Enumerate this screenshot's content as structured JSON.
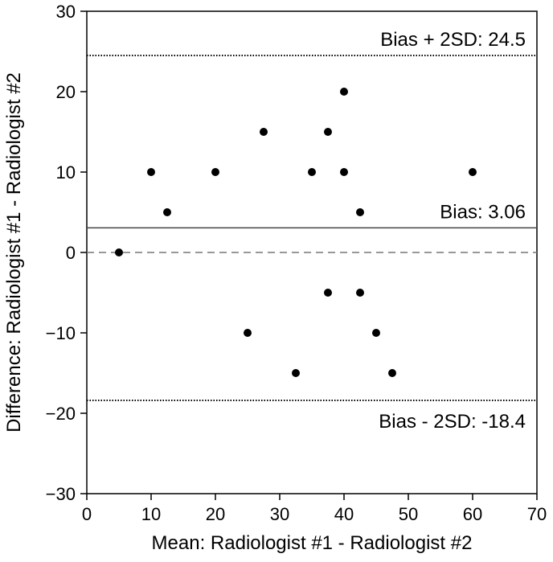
{
  "chart_data": {
    "type": "scatter",
    "title": "",
    "xlabel": "Mean: Radiologist #1 - Radiologist #2",
    "ylabel": "Difference: Radiologist #1 - Radiologist #2",
    "xlim": [
      0,
      70
    ],
    "ylim": [
      -30,
      30
    ],
    "x_ticks": [
      0,
      10,
      20,
      30,
      40,
      50,
      60,
      70
    ],
    "y_ticks": [
      -30,
      -20,
      -10,
      0,
      10,
      20,
      30
    ],
    "x_tick_labels": [
      "0",
      "10",
      "20",
      "30",
      "40",
      "50",
      "60",
      "70"
    ],
    "y_tick_labels": [
      "−30",
      "−20",
      "−10",
      "0",
      "10",
      "20",
      "30"
    ],
    "grid": false,
    "points": [
      {
        "x": 5,
        "y": 0
      },
      {
        "x": 10,
        "y": 10
      },
      {
        "x": 12.5,
        "y": 5
      },
      {
        "x": 20,
        "y": 10
      },
      {
        "x": 25,
        "y": -10
      },
      {
        "x": 27.5,
        "y": 15
      },
      {
        "x": 32.5,
        "y": -15
      },
      {
        "x": 35,
        "y": 10
      },
      {
        "x": 37.5,
        "y": 15
      },
      {
        "x": 37.5,
        "y": -5
      },
      {
        "x": 40,
        "y": 20
      },
      {
        "x": 40,
        "y": 10
      },
      {
        "x": 42.5,
        "y": 5
      },
      {
        "x": 42.5,
        "y": -5
      },
      {
        "x": 45,
        "y": -10
      },
      {
        "x": 47.5,
        "y": -15
      },
      {
        "x": 60,
        "y": 10
      }
    ],
    "reference_lines": [
      {
        "name": "upper-limit",
        "y": 24.5,
        "style": "dotted",
        "label": "Bias + 2SD: 24.5",
        "label_position": "above"
      },
      {
        "name": "bias",
        "y": 3.06,
        "style": "solid",
        "label": "Bias: 3.06",
        "label_position": "above"
      },
      {
        "name": "zero",
        "y": 0,
        "style": "dashed",
        "label": "",
        "label_position": "none"
      },
      {
        "name": "lower-limit",
        "y": -18.4,
        "style": "dotted",
        "label": "Bias - 2SD: -18.4",
        "label_position": "below"
      }
    ],
    "colors": {
      "points": "#000000",
      "axis": "#000000",
      "zero_line": "#777777",
      "bias_line": "#444444",
      "limit_lines": "#000000"
    }
  }
}
